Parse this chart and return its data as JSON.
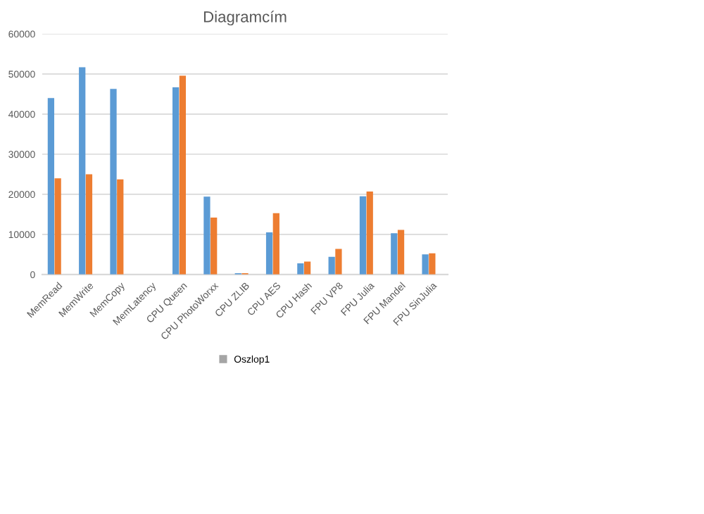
{
  "chart_data": {
    "type": "bar",
    "title": "Diagramcím",
    "categories": [
      "MemRead",
      "MemWrite",
      "MemCopy",
      "MemLatency",
      "CPU Queen",
      "CPU PhotoWorxx",
      "CPU ZLIB",
      "CPU AES",
      "CPU Hash",
      "FPU VP8",
      "FPU Julia",
      "FPU Mandel",
      "FPU SinJulia"
    ],
    "series": [
      {
        "color": "#5b9bd5",
        "values": [
          44000,
          51700,
          46300,
          null,
          46700,
          19400,
          300,
          10500,
          2800,
          4400,
          19500,
          10300,
          5000
        ]
      },
      {
        "color": "#ed7d31",
        "values": [
          24000,
          25000,
          23700,
          null,
          49600,
          14200,
          300,
          15300,
          3200,
          6400,
          20700,
          11100,
          5300
        ]
      },
      {
        "name": "Oszlop1",
        "color": "#a5a5a5",
        "values": [
          null,
          null,
          null,
          null,
          null,
          null,
          null,
          null,
          null,
          null,
          null,
          null,
          null
        ]
      }
    ],
    "ylim": [
      0,
      60000
    ],
    "yticks": [
      0,
      10000,
      20000,
      30000,
      40000,
      50000,
      60000
    ],
    "grid": "y",
    "legend": "bottom"
  }
}
